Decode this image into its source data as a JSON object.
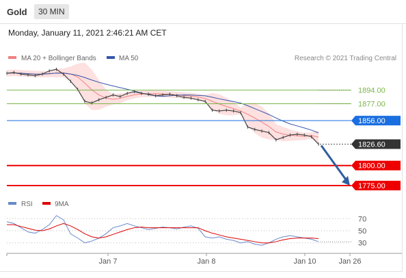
{
  "header": {
    "instrument": "Gold",
    "timeframe": "30 MIN",
    "timestamp": "Monday, January 11, 2021 2:46:21 AM CET"
  },
  "legend": {
    "ma20": {
      "label": "MA 20 + Bollinger Bands",
      "color": "#f08080"
    },
    "ma50": {
      "label": "MA 50",
      "color": "#3355aa"
    },
    "credit": "Research © 2021 Trading Central"
  },
  "rsi_legend": {
    "rsi": {
      "label": "RSI",
      "color": "#6688cc"
    },
    "ma9": {
      "label": "9MA",
      "color": "#dd0000"
    }
  },
  "colors": {
    "candle": "#444444",
    "bollinger_fill": "#fde0e0",
    "green_level": "#7ab648",
    "blue_level": "#1a6fe0",
    "red_level": "#ee0000",
    "arrow": "#2f5d9e",
    "current_price_bg": "#333333"
  },
  "chart_data": [
    {
      "type": "line",
      "title": "",
      "x_ticks": [
        "Jan 7",
        "Jan 8",
        "Jan 10",
        "Jan 26"
      ],
      "price_series_approx": [
        1915,
        1916,
        1914,
        1913,
        1912,
        1914,
        1918,
        1920,
        1914,
        1905,
        1895,
        1880,
        1878,
        1882,
        1885,
        1888,
        1886,
        1890,
        1892,
        1890,
        1889,
        1887,
        1888,
        1889,
        1887,
        1885,
        1884,
        1882,
        1880,
        1869,
        1868,
        1869,
        1868,
        1866,
        1848,
        1845,
        1843,
        1841,
        1832,
        1835,
        1838,
        1839,
        1838,
        1836,
        1826.6
      ],
      "levels": [
        {
          "label": "1894.00",
          "value": 1894.0,
          "color": "green"
        },
        {
          "label": "1877.00",
          "value": 1877.0,
          "color": "green"
        },
        {
          "label": "1856.00",
          "value": 1856.0,
          "color": "blue"
        },
        {
          "label": "1826.60",
          "value": 1826.6,
          "color": "dark",
          "kind": "current"
        },
        {
          "label": "1800.00",
          "value": 1800.0,
          "color": "red"
        },
        {
          "label": "1775.00",
          "value": 1775.0,
          "color": "red"
        }
      ],
      "ylim": [
        1769,
        1921
      ]
    },
    {
      "type": "line",
      "series": [
        {
          "name": "RSI",
          "values": [
            65,
            62,
            55,
            48,
            46,
            52,
            60,
            75,
            68,
            45,
            38,
            30,
            33,
            38,
            45,
            55,
            58,
            62,
            58,
            55,
            52,
            54,
            56,
            55,
            53,
            56,
            58,
            54,
            40,
            38,
            40,
            36,
            34,
            30,
            32,
            28,
            26,
            30,
            36,
            40,
            42,
            40,
            38,
            36,
            32
          ]
        },
        {
          "name": "9MA",
          "values": [
            60,
            60,
            57,
            54,
            51,
            50,
            53,
            58,
            62,
            58,
            52,
            45,
            40,
            38,
            40,
            44,
            48,
            52,
            55,
            56,
            55,
            55,
            55,
            55,
            55,
            55,
            55,
            55,
            50,
            46,
            43,
            40,
            38,
            36,
            34,
            32,
            30,
            30,
            32,
            35,
            37,
            38,
            38,
            38,
            37
          ]
        }
      ],
      "levels": [
        70,
        50,
        30
      ],
      "ylim": [
        15,
        85
      ]
    }
  ]
}
